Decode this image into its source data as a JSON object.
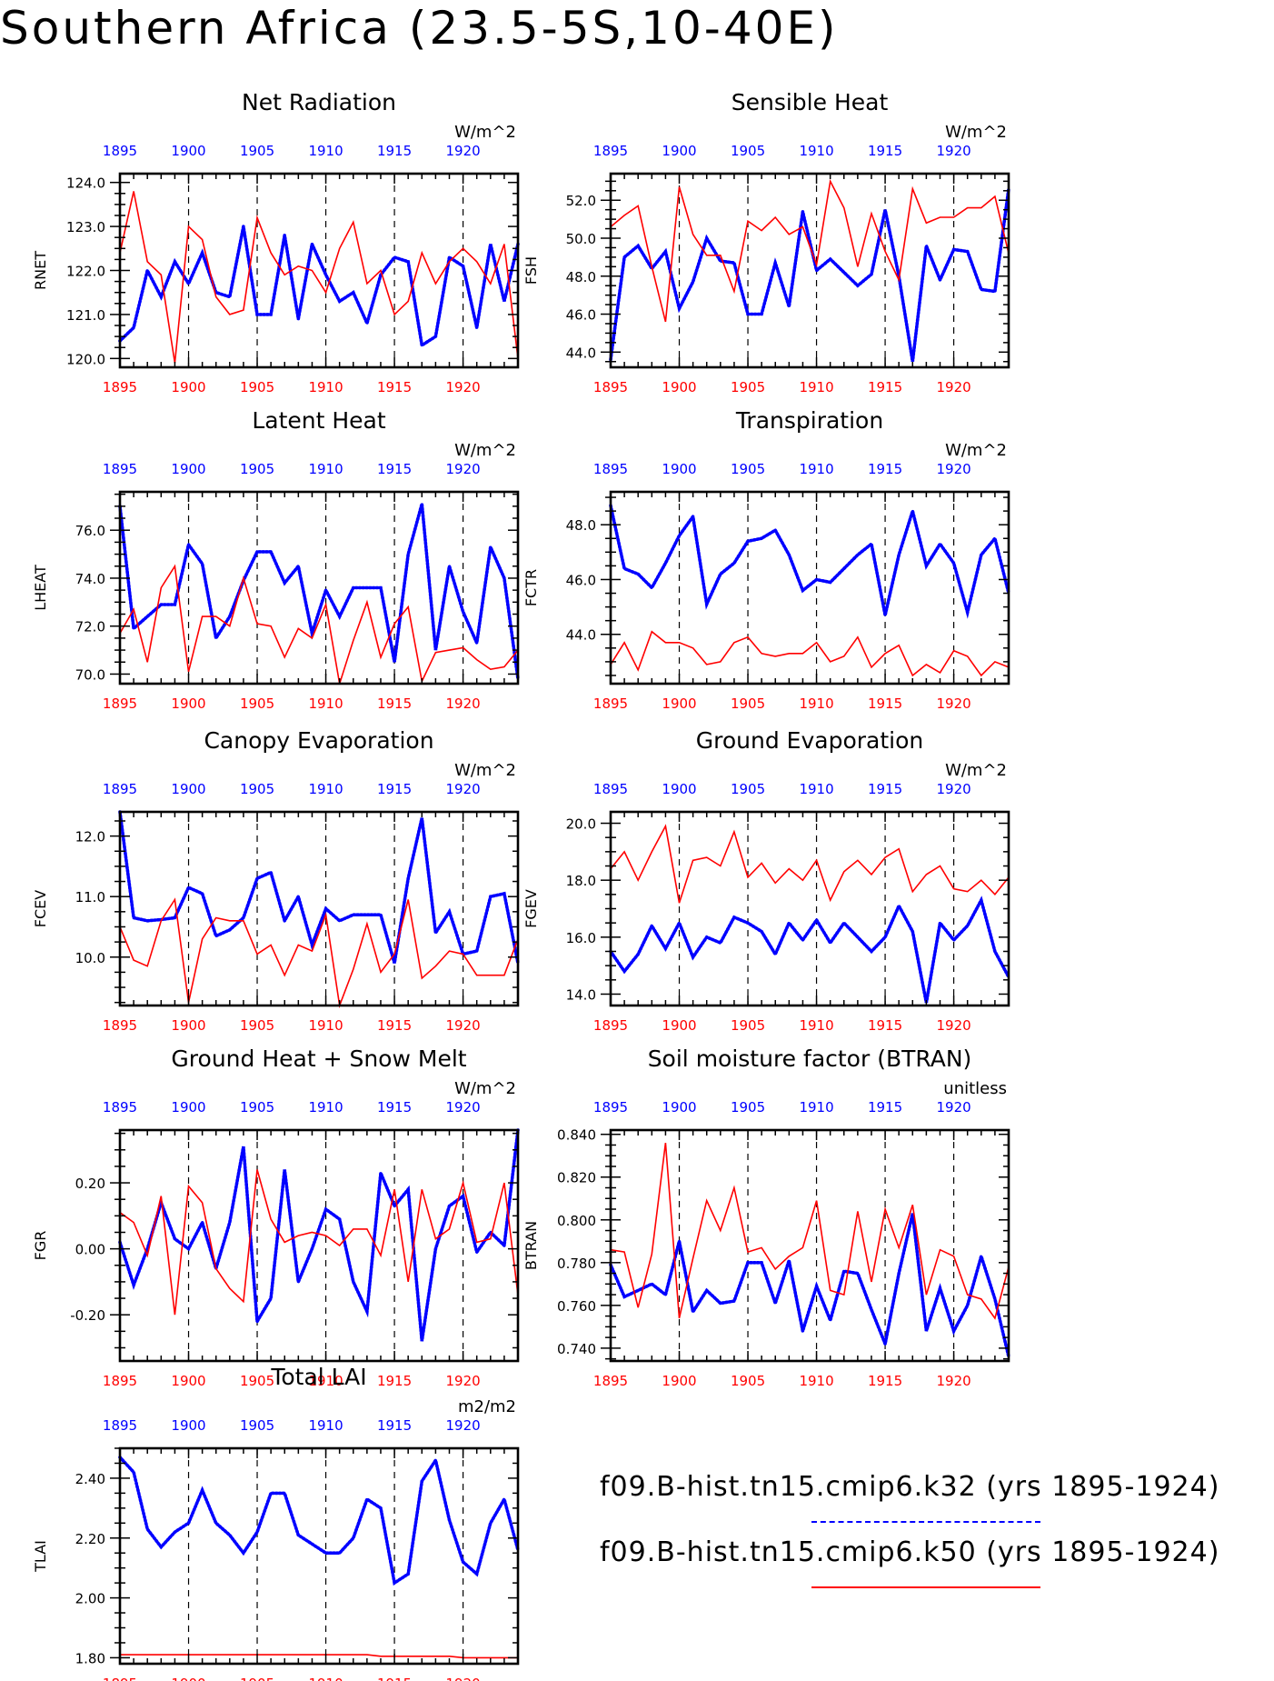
{
  "page": {
    "title": "Southern Africa (23.5-5S,10-40E)"
  },
  "legend": {
    "entries": [
      {
        "label": "f09.B-hist.tn15.cmip6.k32 (yrs 1895-1924)",
        "color": "#0000ff",
        "style": "dashed"
      },
      {
        "label": "f09.B-hist.tn15.cmip6.k50 (yrs 1895-1924)",
        "color": "#ff0000",
        "style": "solid"
      }
    ]
  },
  "chart_data": [
    {
      "type": "line",
      "title": "Net Radiation",
      "ylabel": "RNET",
      "units": "W/m^2",
      "ylim": [
        119.8,
        124.2
      ],
      "yticks": [
        120.0,
        121.0,
        122.0,
        123.0,
        124.0
      ],
      "ytick_labels": [
        "120.0",
        "121.0",
        "122.0",
        "123.0",
        "124.0"
      ],
      "xlim": [
        1895,
        1924
      ],
      "xticks": [
        1895,
        1900,
        1905,
        1910,
        1915,
        1920
      ],
      "series": [
        {
          "color": "#0000ff",
          "style": "dotted",
          "x_start": 1895,
          "values": [
            120.4,
            120.7,
            122.0,
            121.4,
            122.2,
            121.7,
            122.4,
            121.5,
            121.4,
            123.0,
            121.0,
            121.0,
            122.8,
            120.9,
            122.6,
            121.9,
            121.3,
            121.5,
            120.8,
            121.9,
            122.3,
            122.2,
            120.3,
            120.5,
            122.3,
            122.1,
            120.7,
            122.6,
            121.3,
            122.6
          ]
        },
        {
          "color": "#ff0000",
          "style": "solid",
          "x_start": 1895,
          "values": [
            122.4,
            123.8,
            122.2,
            121.9,
            119.9,
            123.0,
            122.7,
            121.4,
            121.0,
            121.1,
            123.2,
            122.4,
            121.9,
            122.1,
            122.0,
            121.5,
            122.5,
            123.1,
            121.7,
            122.0,
            121.0,
            121.3,
            122.4,
            121.7,
            122.2,
            122.5,
            122.2,
            121.7,
            122.6,
            120.0
          ]
        }
      ]
    },
    {
      "type": "line",
      "title": "Sensible Heat",
      "ylabel": "FSH",
      "units": "W/m^2",
      "ylim": [
        43.2,
        53.4
      ],
      "yticks": [
        44.0,
        46.0,
        48.0,
        50.0,
        52.0
      ],
      "ytick_labels": [
        "44.0",
        "46.0",
        "48.0",
        "50.0",
        "52.0"
      ],
      "xlim": [
        1895,
        1924
      ],
      "xticks": [
        1895,
        1900,
        1905,
        1910,
        1915,
        1920
      ],
      "series": [
        {
          "color": "#0000ff",
          "style": "dotted",
          "x_start": 1895,
          "values": [
            43.6,
            49.0,
            49.6,
            48.4,
            49.3,
            46.3,
            47.7,
            50.0,
            48.8,
            48.7,
            46.0,
            46.0,
            48.7,
            46.4,
            51.4,
            48.3,
            48.9,
            48.2,
            47.5,
            48.1,
            51.5,
            48.0,
            43.5,
            49.6,
            47.8,
            49.4,
            49.3,
            47.3,
            47.2,
            52.6
          ]
        },
        {
          "color": "#ff0000",
          "style": "solid",
          "x_start": 1895,
          "values": [
            50.6,
            51.2,
            51.7,
            48.5,
            45.6,
            52.7,
            50.2,
            49.1,
            49.1,
            47.2,
            50.9,
            50.4,
            51.1,
            50.2,
            50.6,
            48.6,
            53.0,
            51.6,
            48.5,
            51.3,
            49.3,
            47.8,
            52.6,
            50.8,
            51.1,
            51.1,
            51.6,
            51.6,
            52.2,
            49.2
          ]
        }
      ]
    },
    {
      "type": "line",
      "title": "Latent Heat",
      "ylabel": "LHEAT",
      "units": "W/m^2",
      "ylim": [
        69.6,
        77.6
      ],
      "yticks": [
        70.0,
        72.0,
        74.0,
        76.0
      ],
      "ytick_labels": [
        "70.0",
        "72.0",
        "74.0",
        "76.0"
      ],
      "xlim": [
        1895,
        1924
      ],
      "xticks": [
        1895,
        1900,
        1905,
        1910,
        1915,
        1920
      ],
      "series": [
        {
          "color": "#0000ff",
          "style": "dotted",
          "x_start": 1895,
          "values": [
            77.0,
            71.9,
            72.4,
            72.9,
            72.9,
            75.4,
            74.6,
            71.5,
            72.4,
            73.9,
            75.1,
            75.1,
            73.8,
            74.5,
            71.7,
            73.5,
            72.4,
            73.6,
            73.6,
            73.6,
            70.5,
            75.0,
            77.1,
            71.0,
            74.5,
            72.6,
            71.3,
            75.3,
            74.0,
            69.8
          ]
        },
        {
          "color": "#ff0000",
          "style": "solid",
          "x_start": 1895,
          "values": [
            71.7,
            72.7,
            70.5,
            73.6,
            74.5,
            70.1,
            72.4,
            72.4,
            72.0,
            74.0,
            72.1,
            72.0,
            70.7,
            71.9,
            71.5,
            72.9,
            69.6,
            71.4,
            73.0,
            70.7,
            72.1,
            72.8,
            69.7,
            70.9,
            71.0,
            71.1,
            70.6,
            70.2,
            70.3,
            71.0
          ]
        }
      ]
    },
    {
      "type": "line",
      "title": "Transpiration",
      "ylabel": "FCTR",
      "units": "W/m^2",
      "ylim": [
        42.2,
        49.2
      ],
      "yticks": [
        44.0,
        46.0,
        48.0
      ],
      "ytick_labels": [
        "44.0",
        "46.0",
        "48.0"
      ],
      "xlim": [
        1895,
        1924
      ],
      "xticks": [
        1895,
        1900,
        1905,
        1910,
        1915,
        1920
      ],
      "series": [
        {
          "color": "#0000ff",
          "style": "dotted",
          "x_start": 1895,
          "values": [
            48.7,
            46.4,
            46.2,
            45.7,
            46.6,
            47.6,
            48.3,
            45.1,
            46.2,
            46.6,
            47.4,
            47.5,
            47.8,
            46.9,
            45.6,
            46.0,
            45.9,
            46.4,
            46.9,
            47.3,
            44.7,
            46.9,
            48.5,
            46.5,
            47.3,
            46.6,
            44.8,
            46.9,
            47.5,
            45.5
          ]
        },
        {
          "color": "#ff0000",
          "style": "solid",
          "x_start": 1895,
          "values": [
            42.9,
            43.7,
            42.7,
            44.1,
            43.7,
            43.7,
            43.5,
            42.9,
            43.0,
            43.7,
            43.9,
            43.3,
            43.2,
            43.3,
            43.3,
            43.7,
            43.0,
            43.2,
            43.9,
            42.8,
            43.3,
            43.6,
            42.5,
            42.9,
            42.6,
            43.4,
            43.2,
            42.5,
            43.0,
            42.8
          ]
        }
      ]
    },
    {
      "type": "line",
      "title": "Canopy Evaporation",
      "ylabel": "FCEV",
      "units": "W/m^2",
      "ylim": [
        9.2,
        12.4
      ],
      "yticks": [
        10.0,
        11.0,
        12.0
      ],
      "ytick_labels": [
        "10.0",
        "11.0",
        "12.0"
      ],
      "xlim": [
        1895,
        1924
      ],
      "xticks": [
        1895,
        1900,
        1905,
        1910,
        1915,
        1920
      ],
      "series": [
        {
          "color": "#0000ff",
          "style": "dotted",
          "x_start": 1895,
          "values": [
            12.4,
            10.65,
            10.6,
            10.62,
            10.65,
            11.15,
            11.05,
            10.35,
            10.45,
            10.65,
            11.3,
            11.4,
            10.6,
            11.0,
            10.2,
            10.8,
            10.6,
            10.7,
            10.7,
            10.7,
            9.9,
            11.3,
            12.3,
            10.4,
            10.75,
            10.05,
            10.1,
            11.0,
            11.05,
            9.9
          ]
        },
        {
          "color": "#ff0000",
          "style": "solid",
          "x_start": 1895,
          "values": [
            10.5,
            9.95,
            9.85,
            10.6,
            10.95,
            9.25,
            10.3,
            10.65,
            10.6,
            10.6,
            10.05,
            10.2,
            9.7,
            10.2,
            10.1,
            10.7,
            9.2,
            9.8,
            10.55,
            9.75,
            10.05,
            10.95,
            9.65,
            9.85,
            10.1,
            10.05,
            9.7,
            9.7,
            9.7,
            10.3
          ]
        }
      ]
    },
    {
      "type": "line",
      "title": "Ground Evaporation",
      "ylabel": "FGEV",
      "units": "W/m^2",
      "ylim": [
        13.6,
        20.4
      ],
      "yticks": [
        14.0,
        16.0,
        18.0,
        20.0
      ],
      "ytick_labels": [
        "14.0",
        "16.0",
        "18.0",
        "20.0"
      ],
      "xlim": [
        1895,
        1924
      ],
      "xticks": [
        1895,
        1900,
        1905,
        1910,
        1915,
        1920
      ],
      "series": [
        {
          "color": "#0000ff",
          "style": "dotted",
          "x_start": 1895,
          "values": [
            15.5,
            14.8,
            15.4,
            16.4,
            15.6,
            16.5,
            15.3,
            16.0,
            15.8,
            16.7,
            16.5,
            16.2,
            15.4,
            16.5,
            15.9,
            16.6,
            15.8,
            16.5,
            16.0,
            15.5,
            16.0,
            17.1,
            16.2,
            13.7,
            16.5,
            15.9,
            16.4,
            17.3,
            15.5,
            14.6
          ]
        },
        {
          "color": "#ff0000",
          "style": "solid",
          "x_start": 1895,
          "values": [
            18.4,
            19.0,
            18.0,
            19.0,
            19.9,
            17.2,
            18.7,
            18.8,
            18.5,
            19.7,
            18.1,
            18.6,
            17.9,
            18.4,
            18.0,
            18.7,
            17.3,
            18.3,
            18.7,
            18.2,
            18.8,
            19.1,
            17.6,
            18.2,
            18.5,
            17.7,
            17.6,
            18.0,
            17.5,
            18.1
          ]
        }
      ]
    },
    {
      "type": "line",
      "title": "Ground Heat + Snow Melt",
      "ylabel": "FGR",
      "units": "W/m^2",
      "ylim": [
        -0.34,
        0.36
      ],
      "yticks": [
        -0.2,
        0.0,
        0.2
      ],
      "ytick_labels": [
        "-0.20",
        "0.00",
        "0.20"
      ],
      "xlim": [
        1895,
        1924
      ],
      "xticks": [
        1895,
        1900,
        1905,
        1910,
        1915,
        1920
      ],
      "series": [
        {
          "color": "#0000ff",
          "style": "dotted",
          "x_start": 1895,
          "values": [
            0.02,
            -0.11,
            0.0,
            0.14,
            0.03,
            0.0,
            0.08,
            -0.06,
            0.08,
            0.31,
            -0.22,
            -0.15,
            0.24,
            -0.1,
            0.0,
            0.12,
            0.09,
            -0.1,
            -0.19,
            0.23,
            0.13,
            0.18,
            -0.28,
            0.0,
            0.13,
            0.16,
            -0.01,
            0.05,
            0.01,
            0.36
          ]
        },
        {
          "color": "#ff0000",
          "style": "solid",
          "x_start": 1895,
          "values": [
            0.11,
            0.08,
            -0.02,
            0.16,
            -0.2,
            0.19,
            0.14,
            -0.06,
            -0.12,
            -0.16,
            0.24,
            0.09,
            0.02,
            0.04,
            0.05,
            0.04,
            0.01,
            0.06,
            0.06,
            -0.02,
            0.18,
            -0.1,
            0.18,
            0.03,
            0.06,
            0.2,
            0.02,
            0.03,
            0.2,
            -0.14
          ]
        }
      ]
    },
    {
      "type": "line",
      "title": "Soil moisture factor (BTRAN)",
      "ylabel": "BTRAN",
      "units": "unitless",
      "ylim": [
        0.734,
        0.842
      ],
      "yticks": [
        0.74,
        0.76,
        0.78,
        0.8,
        0.82,
        0.84
      ],
      "ytick_labels": [
        "0.740",
        "0.760",
        "0.780",
        "0.800",
        "0.820",
        "0.840"
      ],
      "xlim": [
        1895,
        1924
      ],
      "xticks": [
        1895,
        1900,
        1905,
        1910,
        1915,
        1920
      ],
      "series": [
        {
          "color": "#0000ff",
          "style": "dotted",
          "x_start": 1895,
          "values": [
            0.779,
            0.764,
            0.767,
            0.77,
            0.765,
            0.79,
            0.757,
            0.767,
            0.761,
            0.762,
            0.78,
            0.78,
            0.761,
            0.781,
            0.748,
            0.769,
            0.753,
            0.776,
            0.775,
            0.758,
            0.742,
            0.775,
            0.803,
            0.748,
            0.768,
            0.748,
            0.76,
            0.783,
            0.763,
            0.736
          ]
        },
        {
          "color": "#ff0000",
          "style": "solid",
          "x_start": 1895,
          "values": [
            0.786,
            0.785,
            0.759,
            0.784,
            0.836,
            0.754,
            0.782,
            0.809,
            0.795,
            0.815,
            0.785,
            0.787,
            0.777,
            0.783,
            0.787,
            0.809,
            0.767,
            0.765,
            0.804,
            0.771,
            0.805,
            0.787,
            0.807,
            0.765,
            0.786,
            0.783,
            0.765,
            0.763,
            0.754,
            0.778
          ]
        }
      ]
    },
    {
      "type": "line",
      "title": "Total LAI",
      "ylabel": "TLAI",
      "units": "m2/m2",
      "ylim": [
        1.78,
        2.5
      ],
      "yticks": [
        1.8,
        2.0,
        2.2,
        2.4
      ],
      "ytick_labels": [
        "1.80",
        "2.00",
        "2.20",
        "2.40"
      ],
      "xlim": [
        1895,
        1924
      ],
      "xticks": [
        1895,
        1900,
        1905,
        1910,
        1915,
        1920
      ],
      "series": [
        {
          "color": "#0000ff",
          "style": "dotted",
          "x_start": 1895,
          "values": [
            2.47,
            2.42,
            2.23,
            2.17,
            2.22,
            2.25,
            2.36,
            2.25,
            2.21,
            2.15,
            2.22,
            2.35,
            2.35,
            2.21,
            2.18,
            2.15,
            2.15,
            2.2,
            2.33,
            2.3,
            2.05,
            2.08,
            2.39,
            2.46,
            2.26,
            2.12,
            2.08,
            2.25,
            2.33,
            2.16
          ]
        },
        {
          "color": "#ff0000",
          "style": "solid",
          "x_start": 1895,
          "values": [
            1.81,
            1.81,
            1.81,
            1.81,
            1.81,
            1.81,
            1.81,
            1.81,
            1.81,
            1.81,
            1.81,
            1.81,
            1.81,
            1.81,
            1.81,
            1.81,
            1.81,
            1.81,
            1.81,
            1.805,
            1.805,
            1.805,
            1.805,
            1.805,
            1.805,
            1.8,
            1.8,
            1.8,
            1.8,
            1.8
          ]
        }
      ]
    }
  ]
}
